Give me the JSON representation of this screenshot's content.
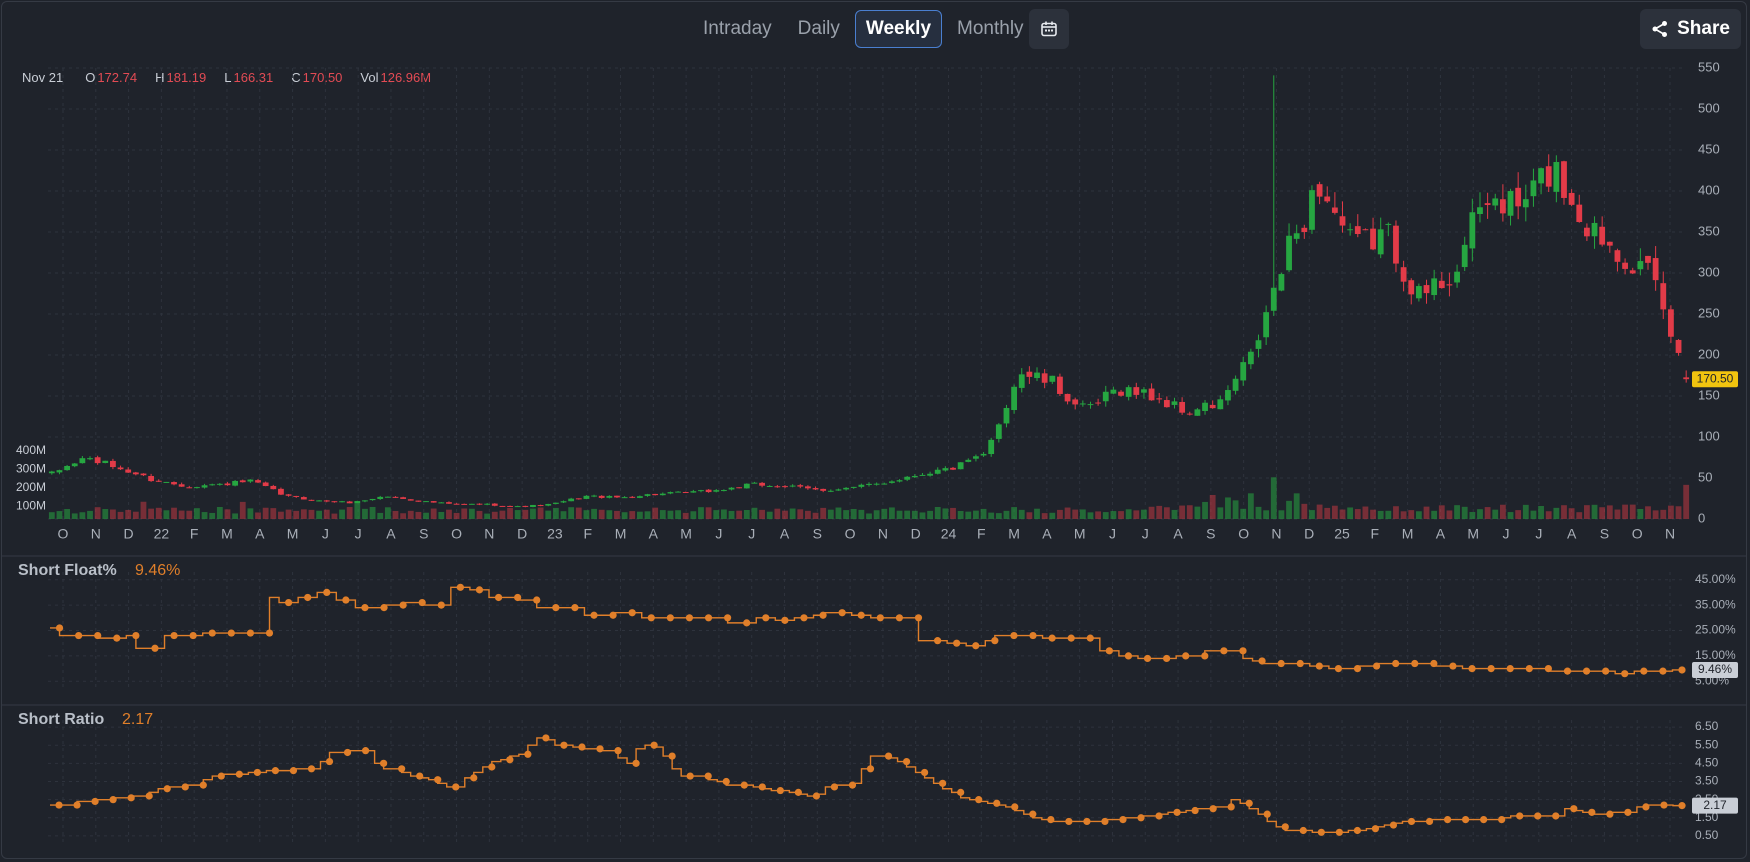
{
  "toolbar": {
    "timeframes": [
      "Intraday",
      "Daily",
      "Weekly",
      "Monthly"
    ],
    "active": "Weekly",
    "calendar_icon": "calendar-icon",
    "share_label": "Share",
    "share_icon": "share-icon"
  },
  "ohlc_legend": {
    "date": "Nov 21",
    "o_key": "O",
    "o": "172.74",
    "h_key": "H",
    "h": "181.19",
    "l_key": "L",
    "l": "166.31",
    "c_key": "C",
    "c": "170.50",
    "vol_key": "Vol",
    "vol": "126.96M"
  },
  "colors": {
    "up": "#26a641",
    "down": "#e23b48",
    "line": "#e07f2a",
    "grid": "#2e333d",
    "background": "#1f232b",
    "last_price_bg": "#f1c40f"
  },
  "chart_data": [
    {
      "type": "candlestick",
      "title": "",
      "last_price": "170.50",
      "x_tick_labels": [
        "O",
        "N",
        "D",
        "22",
        "F",
        "M",
        "A",
        "M",
        "J",
        "J",
        "A",
        "S",
        "O",
        "N",
        "D",
        "23",
        "F",
        "M",
        "A",
        "M",
        "J",
        "J",
        "A",
        "S",
        "O",
        "N",
        "D",
        "24",
        "F",
        "M",
        "A",
        "M",
        "J",
        "J",
        "A",
        "S",
        "O",
        "N",
        "D",
        "25",
        "F",
        "M",
        "A",
        "M",
        "J",
        "J",
        "A",
        "S",
        "O",
        "N"
      ],
      "y_ticks": [
        "550",
        "500",
        "450",
        "400",
        "350",
        "300",
        "250",
        "200",
        "150",
        "100",
        "50",
        "0"
      ],
      "ylim": [
        0,
        550
      ],
      "volume_ticks": [
        "400M",
        "300M",
        "200M",
        "100M"
      ],
      "price_anchors": [
        {
          "x": "2021-10",
          "close": 55
        },
        {
          "x": "2021-11",
          "close": 75
        },
        {
          "x": "2021-12",
          "close": 62
        },
        {
          "x": "2022-01",
          "close": 48
        },
        {
          "x": "2022-02",
          "close": 40
        },
        {
          "x": "2022-03",
          "close": 42
        },
        {
          "x": "2022-04",
          "close": 46
        },
        {
          "x": "2022-05",
          "close": 28
        },
        {
          "x": "2022-06",
          "close": 22
        },
        {
          "x": "2022-07",
          "close": 20
        },
        {
          "x": "2022-08",
          "close": 28
        },
        {
          "x": "2022-09",
          "close": 22
        },
        {
          "x": "2022-10",
          "close": 18
        },
        {
          "x": "2022-11",
          "close": 18
        },
        {
          "x": "2022-12",
          "close": 15
        },
        {
          "x": "2023-01",
          "close": 18
        },
        {
          "x": "2023-02",
          "close": 28
        },
        {
          "x": "2023-03",
          "close": 26
        },
        {
          "x": "2023-04",
          "close": 30
        },
        {
          "x": "2023-05",
          "close": 32
        },
        {
          "x": "2023-06",
          "close": 35
        },
        {
          "x": "2023-07",
          "close": 42
        },
        {
          "x": "2023-08",
          "close": 40
        },
        {
          "x": "2023-09",
          "close": 35
        },
        {
          "x": "2023-10",
          "close": 38
        },
        {
          "x": "2023-11",
          "close": 45
        },
        {
          "x": "2023-12",
          "close": 55
        },
        {
          "x": "2024-01",
          "close": 62
        },
        {
          "x": "2024-02",
          "close": 78
        },
        {
          "x": "2024-03",
          "close": 180
        },
        {
          "x": "2024-04",
          "close": 165
        },
        {
          "x": "2024-05",
          "close": 130
        },
        {
          "x": "2024-06",
          "close": 160
        },
        {
          "x": "2024-07",
          "close": 150
        },
        {
          "x": "2024-08",
          "close": 130
        },
        {
          "x": "2024-09",
          "close": 140
        },
        {
          "x": "2024-10",
          "close": 200
        },
        {
          "x": "2024-11",
          "close": 320
        },
        {
          "x": "2024-12",
          "close": 410
        },
        {
          "x": "2025-01",
          "close": 330
        },
        {
          "x": "2025-02",
          "close": 350
        },
        {
          "x": "2025-03",
          "close": 270
        },
        {
          "x": "2025-04",
          "close": 300
        },
        {
          "x": "2025-05",
          "close": 390
        },
        {
          "x": "2025-06",
          "close": 380
        },
        {
          "x": "2025-07",
          "close": 430
        },
        {
          "x": "2025-08",
          "close": 360
        },
        {
          "x": "2025-09",
          "close": 330
        },
        {
          "x": "2025-10",
          "close": 290
        },
        {
          "x": "2025-11",
          "close": 170.5
        }
      ],
      "price_high_max": 541
    },
    {
      "type": "line",
      "title": "Short Float%",
      "current": "9.46%",
      "y_ticks": [
        "45.00%",
        "35.00%",
        "25.00%",
        "15.00%",
        "5.00%"
      ],
      "ylim": [
        0,
        50
      ],
      "values": [
        26,
        23,
        23,
        23,
        23,
        22,
        22,
        22,
        23,
        18,
        18,
        18,
        23,
        23,
        23,
        23,
        24,
        24,
        24,
        24,
        24,
        24,
        24,
        38,
        36,
        36,
        38,
        38,
        40,
        40,
        37,
        37,
        34,
        34,
        34,
        35,
        35,
        36,
        36,
        35,
        35,
        35,
        42,
        42,
        41,
        41,
        38,
        38,
        38,
        37,
        37,
        34,
        34,
        34,
        34,
        34,
        31,
        31,
        31,
        32,
        32,
        32,
        30,
        30,
        30,
        30,
        30,
        30,
        30,
        30,
        30,
        28,
        28,
        28,
        30,
        30,
        29,
        29,
        30,
        30,
        31,
        32,
        32,
        32,
        31,
        31,
        30,
        30,
        30,
        30,
        30,
        21,
        21,
        21,
        20,
        20,
        19,
        19,
        21,
        23,
        23,
        23,
        23,
        23,
        22,
        22,
        22,
        22,
        22,
        22,
        17,
        17,
        15,
        15,
        14,
        14,
        14,
        14,
        15,
        15,
        15,
        17,
        17,
        17,
        17,
        14,
        13,
        12,
        12,
        12,
        12,
        12,
        11,
        11,
        10,
        10,
        10,
        11,
        11,
        12,
        12,
        12,
        12,
        12,
        12,
        11,
        11,
        11,
        10,
        10,
        10,
        10,
        10,
        10,
        10,
        10,
        10,
        9,
        9,
        9,
        9,
        9,
        9,
        9,
        8,
        8,
        9,
        9,
        9,
        9,
        9.46,
        9.46
      ]
    },
    {
      "type": "line",
      "title": "Short Ratio",
      "current": "2.17",
      "y_ticks": [
        "6.50",
        "5.50",
        "4.50",
        "3.50",
        "2.50",
        "1.50",
        "0.50"
      ],
      "ylim": [
        0,
        7
      ],
      "values": [
        2.2,
        2.2,
        2.2,
        2.4,
        2.4,
        2.5,
        2.5,
        2.6,
        2.6,
        2.7,
        2.7,
        2.9,
        3.1,
        3.2,
        3.2,
        3.3,
        3.3,
        3.6,
        3.8,
        3.9,
        3.9,
        3.9,
        4.0,
        4.0,
        4.1,
        4.1,
        4.1,
        4.2,
        4.2,
        4.2,
        4.6,
        5.1,
        5.1,
        5.2,
        5.2,
        5.2,
        4.5,
        4.2,
        4.2,
        4.0,
        3.8,
        3.7,
        3.6,
        3.4,
        3.2,
        3.2,
        3.7,
        4.0,
        4.3,
        4.6,
        4.7,
        4.9,
        5.0,
        5.5,
        5.9,
        5.8,
        5.5,
        5.5,
        5.4,
        5.3,
        5.3,
        5.2,
        5.2,
        4.8,
        4.5,
        5.3,
        5.5,
        5.4,
        4.9,
        4.2,
        3.8,
        3.8,
        3.8,
        3.6,
        3.5,
        3.3,
        3.3,
        3.3,
        3.2,
        3.1,
        3.0,
        3.0,
        2.9,
        2.8,
        2.7,
        2.8,
        3.2,
        3.3,
        3.3,
        3.4,
        4.2,
        4.9,
        4.9,
        4.8,
        4.6,
        4.3,
        4.0,
        3.7,
        3.4,
        3.1,
        2.9,
        2.6,
        2.5,
        2.4,
        2.3,
        2.2,
        2.1,
        1.9,
        1.7,
        1.5,
        1.4,
        1.3,
        1.3,
        1.3,
        1.3,
        1.3,
        1.3,
        1.4,
        1.4,
        1.5,
        1.5,
        1.6,
        1.6,
        1.7,
        1.8,
        1.8,
        1.9,
        2.0,
        2.0,
        2.1,
        2.1,
        2.5,
        2.3,
        2.0,
        1.7,
        1.3,
        1.0,
        0.8,
        0.8,
        0.8,
        0.7,
        0.7,
        0.7,
        0.7,
        0.8,
        0.8,
        0.9,
        1.0,
        1.1,
        1.2,
        1.3,
        1.3,
        1.3,
        1.4,
        1.4,
        1.4,
        1.4,
        1.4,
        1.4,
        1.4,
        1.4,
        1.5,
        1.6,
        1.6,
        1.6,
        1.6,
        1.6,
        1.6,
        2.0,
        1.9,
        1.8,
        1.7,
        1.7,
        1.8,
        1.8,
        1.8,
        2.1,
        2.2,
        2.2,
        2.2,
        2.17,
        2.17
      ]
    }
  ]
}
